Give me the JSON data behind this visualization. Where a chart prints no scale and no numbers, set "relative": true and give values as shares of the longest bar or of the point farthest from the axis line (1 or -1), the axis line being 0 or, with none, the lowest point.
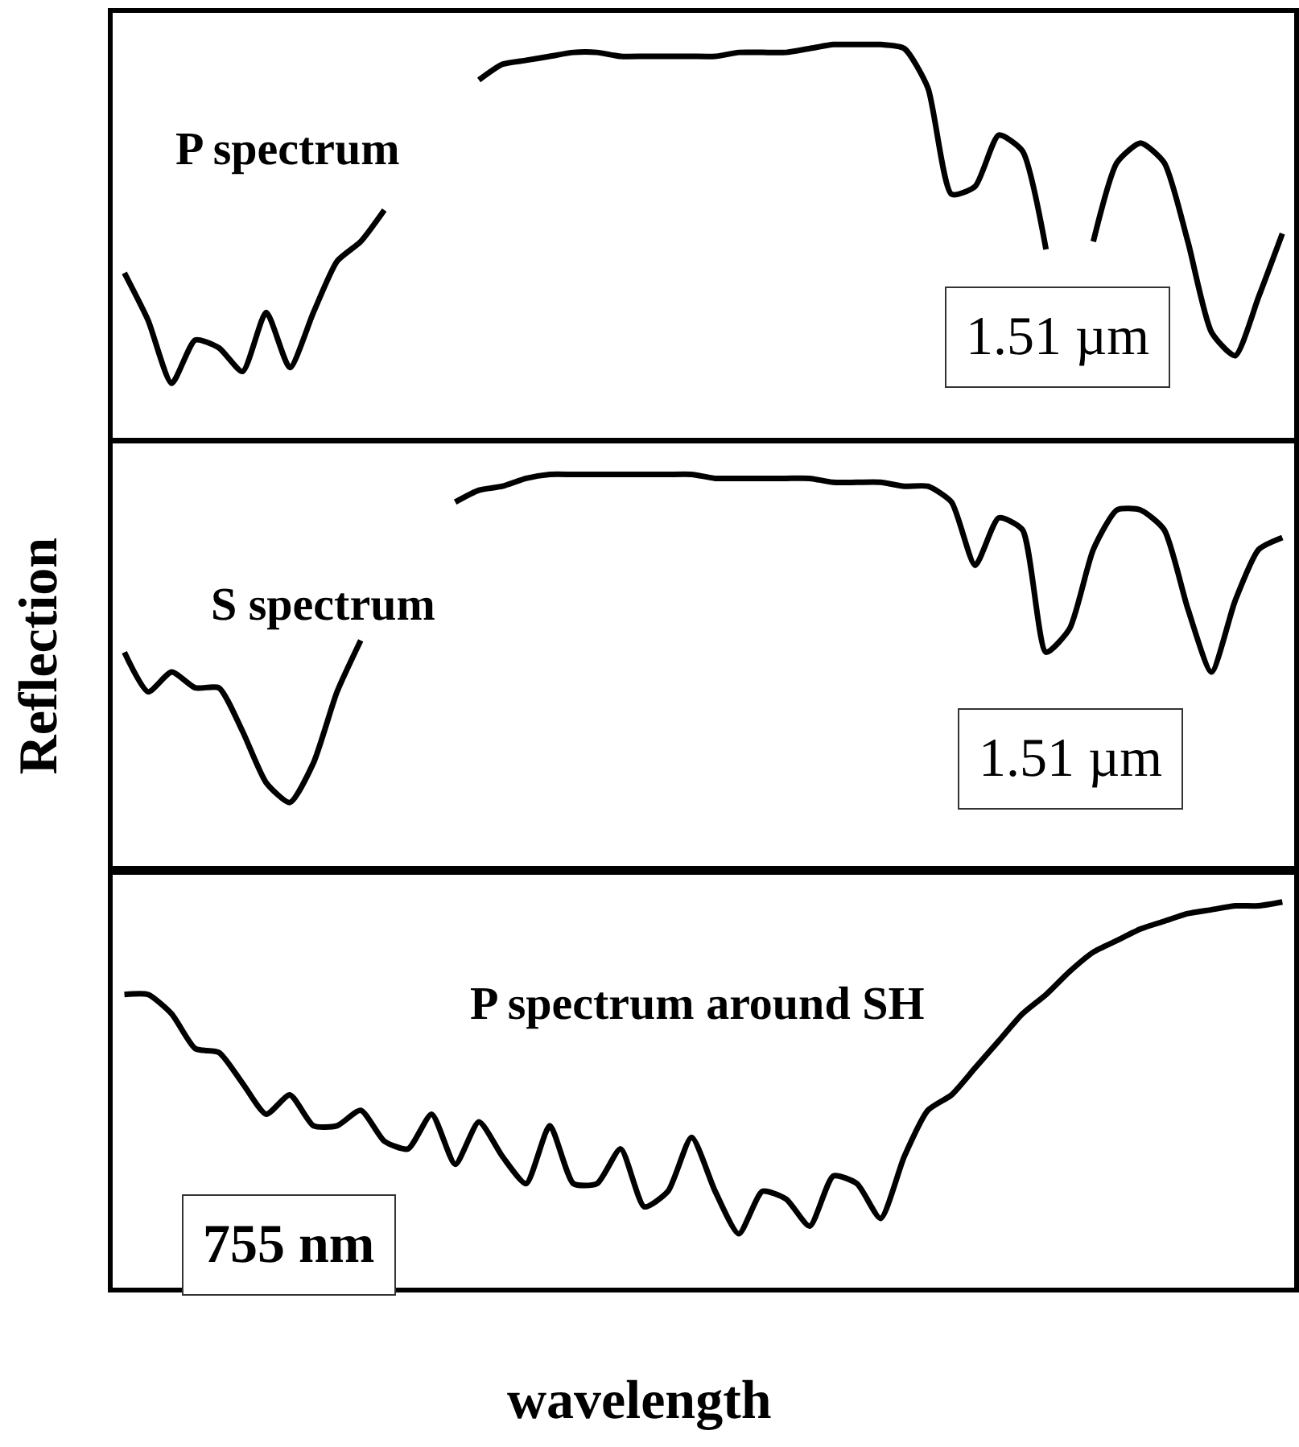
{
  "chart_data": [
    {
      "type": "line",
      "relative": true,
      "marker": "none",
      "line_style": "solid",
      "categories": [
        null,
        null,
        null,
        null,
        null,
        null,
        null,
        null,
        null,
        null,
        null,
        null,
        null,
        null,
        null,
        null,
        null,
        null,
        null,
        null,
        null,
        null,
        null,
        null,
        null,
        null,
        null,
        null,
        null,
        null,
        null,
        null,
        null,
        null,
        null,
        null,
        null,
        null,
        null,
        null,
        null,
        null,
        null,
        null,
        null,
        null,
        null,
        null,
        null,
        null
      ],
      "series": [
        {
          "color": "#000000",
          "values": [
            0.42,
            0.3,
            0.14,
            0.25,
            0.23,
            0.17,
            0.32,
            0.18,
            0.32,
            0.45,
            0.5,
            0.58,
            null,
            null,
            null,
            0.91,
            0.95,
            0.96,
            0.97,
            0.98,
            0.98,
            0.97,
            0.97,
            0.97,
            0.97,
            0.97,
            0.98,
            0.98,
            0.98,
            0.99,
            1.0,
            1.0,
            1.0,
            0.99,
            0.89,
            0.62,
            0.64,
            0.77,
            0.73,
            0.48,
            null,
            0.5,
            0.7,
            0.75,
            0.7,
            0.5,
            0.27,
            0.21,
            0.36,
            0.52
          ]
        }
      ],
      "annotations": [
        "P spectrum",
        "1.51 µm"
      ]
    },
    {
      "type": "line",
      "relative": true,
      "marker": "none",
      "line_style": "solid",
      "ylabel": "Reflection",
      "categories": [
        null,
        null,
        null,
        null,
        null,
        null,
        null,
        null,
        null,
        null,
        null,
        null,
        null,
        null,
        null,
        null,
        null,
        null,
        null,
        null,
        null,
        null,
        null,
        null,
        null,
        null,
        null,
        null,
        null,
        null,
        null,
        null,
        null,
        null,
        null,
        null,
        null,
        null,
        null,
        null,
        null,
        null,
        null,
        null,
        null,
        null,
        null,
        null,
        null,
        null
      ],
      "series": [
        {
          "color": "#000000",
          "values": [
            0.55,
            0.45,
            0.5,
            0.46,
            0.46,
            0.35,
            0.22,
            0.17,
            0.27,
            0.45,
            0.58,
            null,
            null,
            null,
            0.93,
            0.96,
            0.97,
            0.99,
            1.0,
            1.0,
            1.0,
            1.0,
            1.0,
            1.0,
            1.0,
            0.99,
            0.99,
            0.99,
            0.99,
            0.99,
            0.98,
            0.98,
            0.98,
            0.97,
            0.97,
            0.93,
            0.77,
            0.89,
            0.86,
            0.55,
            0.61,
            0.81,
            0.91,
            0.91,
            0.86,
            0.66,
            0.5,
            0.68,
            0.81,
            0.84
          ]
        }
      ],
      "annotations": [
        "S spectrum",
        "1.51 µm"
      ]
    },
    {
      "type": "line",
      "relative": true,
      "marker": "none",
      "line_style": "solid",
      "xlabel": "wavelength",
      "categories": [
        null,
        null,
        null,
        null,
        null,
        null,
        null,
        null,
        null,
        null,
        null,
        null,
        null,
        null,
        null,
        null,
        null,
        null,
        null,
        null,
        null,
        null,
        null,
        null,
        null,
        null,
        null,
        null,
        null,
        null,
        null,
        null,
        null,
        null,
        null,
        null,
        null,
        null,
        null,
        null,
        null,
        null,
        null,
        null,
        null,
        null,
        null,
        null,
        null,
        null
      ],
      "series": [
        {
          "color": "#000000",
          "values": [
            0.76,
            0.76,
            0.71,
            0.62,
            0.61,
            0.53,
            0.45,
            0.5,
            0.42,
            0.42,
            0.46,
            0.38,
            0.36,
            0.45,
            0.32,
            0.43,
            0.34,
            0.27,
            0.42,
            0.27,
            0.27,
            0.36,
            0.21,
            0.25,
            0.39,
            0.25,
            0.14,
            0.25,
            0.23,
            0.16,
            0.29,
            0.27,
            0.18,
            0.34,
            0.46,
            0.5,
            0.57,
            0.64,
            0.71,
            0.76,
            0.82,
            0.87,
            0.9,
            0.93,
            0.95,
            0.97,
            0.98,
            0.99,
            0.99,
            1.0
          ]
        }
      ],
      "annotations": [
        "P spectrum around SH",
        "755 nm"
      ]
    }
  ]
}
